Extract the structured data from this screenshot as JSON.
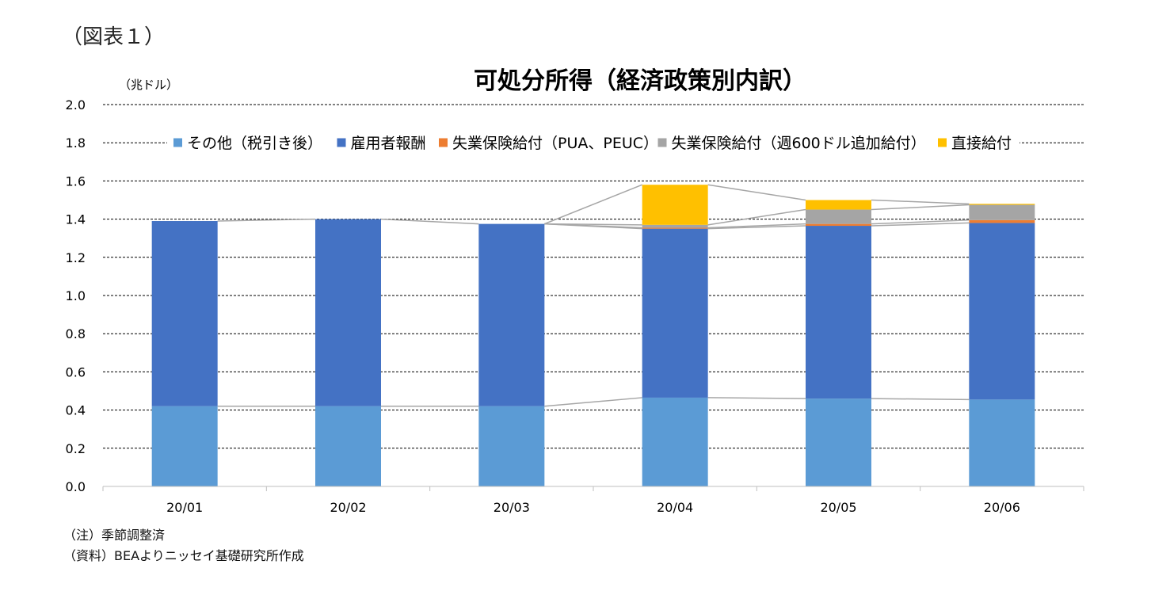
{
  "figure_label": "（図表１）",
  "chart_data": {
    "type": "bar",
    "stacked": true,
    "title": "可処分所得（経済政策別内訳）",
    "ylabel": "（兆ドル）",
    "xlabel": "",
    "categories": [
      "20/01",
      "20/02",
      "20/03",
      "20/04",
      "20/05",
      "20/06"
    ],
    "ylim": [
      0,
      2.0
    ],
    "yticks": [
      "0.0",
      "0.2",
      "0.4",
      "0.6",
      "0.8",
      "1.0",
      "1.2",
      "1.4",
      "1.6",
      "1.8",
      "2.0"
    ],
    "grid": true,
    "legend_position": "top",
    "series_connector_lines": true,
    "series": [
      {
        "name": "その他（税引き後）",
        "color": "#5b9bd5",
        "values": [
          0.42,
          0.42,
          0.42,
          0.465,
          0.46,
          0.455
        ]
      },
      {
        "name": "雇用者報酬",
        "color": "#4472c4",
        "values": [
          0.97,
          0.98,
          0.955,
          0.885,
          0.905,
          0.925
        ]
      },
      {
        "name": "失業保険給付（PUA、PEUC）",
        "color": "#ed7d31",
        "values": [
          0.0,
          0.0,
          0.0,
          0.005,
          0.01,
          0.015
        ]
      },
      {
        "name": "失業保険給付（週600ドル追加給付）",
        "color": "#a5a5a5",
        "values": [
          0.0,
          0.0,
          0.0,
          0.015,
          0.075,
          0.08
        ]
      },
      {
        "name": "直接給付",
        "color": "#ffc000",
        "values": [
          0.0,
          0.0,
          0.0,
          0.21,
          0.05,
          0.005
        ]
      }
    ]
  },
  "notes": {
    "note1": "（注）季節調整済",
    "note2": "（資料）BEAよりニッセイ基礎研究所作成"
  }
}
